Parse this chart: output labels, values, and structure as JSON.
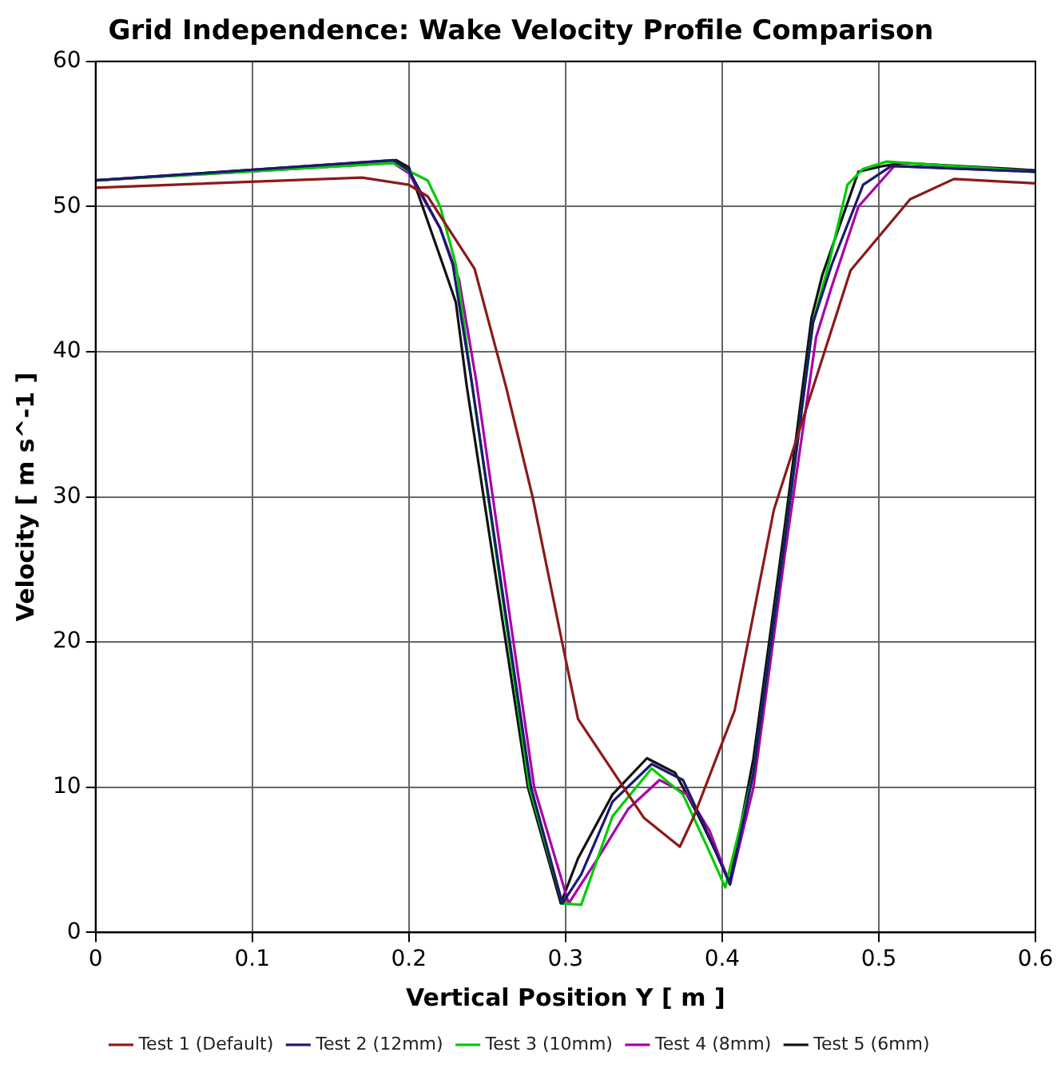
{
  "chart_data": {
    "type": "line",
    "title": "Grid Independence: Wake Velocity Profile Comparison",
    "xlabel": "Vertical Position Y [ m ]",
    "ylabel": "Velocity [ m s^-1 ]",
    "xlim": [
      0,
      0.6
    ],
    "xticks": [
      0,
      0.1,
      0.2,
      0.3,
      0.4,
      0.5,
      0.6
    ],
    "ylim": [
      0,
      60
    ],
    "yticks": [
      0,
      10,
      20,
      30,
      40,
      50,
      60
    ],
    "grid": true,
    "legend": "bottom",
    "marker": "none",
    "line_style": "solid",
    "series": [
      {
        "name": "Test 1 (Default)",
        "color": "#8b1a1a",
        "x": [
          0,
          0.17,
          0.2,
          0.212,
          0.242,
          0.262,
          0.279,
          0.298,
          0.308,
          0.35,
          0.373,
          0.382,
          0.408,
          0.433,
          0.482,
          0.52,
          0.548,
          0.6
        ],
        "values": [
          51.3,
          52.0,
          51.5,
          50.7,
          45.7,
          37.6,
          30,
          19.9,
          14.7,
          7.9,
          5.9,
          8,
          15.3,
          29.1,
          45.6,
          50.5,
          51.9,
          51.6
        ]
      },
      {
        "name": "Test 2 (12mm)",
        "color": "#1a1a6e",
        "x": [
          0,
          0.19,
          0.2,
          0.22,
          0.228,
          0.24,
          0.278,
          0.298,
          0.31,
          0.33,
          0.355,
          0.375,
          0.388,
          0.405,
          0.42,
          0.44,
          0.458,
          0.47,
          0.49,
          0.508,
          0.6
        ],
        "values": [
          51.8,
          53.2,
          52.5,
          48.5,
          46,
          38,
          10,
          2,
          4,
          9,
          11.6,
          10.5,
          7.5,
          3.3,
          11,
          27,
          42,
          46,
          51.5,
          52.8,
          52.4
        ]
      },
      {
        "name": "Test 3 (10mm)",
        "color": "#00cc00",
        "x": [
          0,
          0.19,
          0.212,
          0.22,
          0.23,
          0.24,
          0.277,
          0.298,
          0.31,
          0.33,
          0.355,
          0.375,
          0.39,
          0.402,
          0.42,
          0.44,
          0.458,
          0.468,
          0.48,
          0.49,
          0.505,
          0.6
        ],
        "values": [
          51.8,
          53.0,
          51.8,
          50,
          46,
          38,
          10,
          2,
          1.9,
          8,
          11.3,
          9.5,
          6,
          3.1,
          11,
          27,
          42,
          46,
          51.5,
          52.6,
          53.1,
          52.4
        ]
      },
      {
        "name": "Test 4 (8mm)",
        "color": "#aa00aa",
        "x": [
          0,
          0.19,
          0.2,
          0.22,
          0.232,
          0.243,
          0.28,
          0.302,
          0.32,
          0.34,
          0.36,
          0.378,
          0.392,
          0.405,
          0.42,
          0.44,
          0.46,
          0.47,
          0.487,
          0.51,
          0.6
        ],
        "values": [
          51.8,
          53.0,
          52.3,
          48.5,
          45,
          38,
          10,
          2,
          5,
          8.5,
          10.5,
          9.5,
          7,
          3.3,
          10,
          26,
          41,
          44.5,
          50,
          52.8,
          52.4
        ]
      },
      {
        "name": "Test 5 (6mm)",
        "color": "#111111",
        "x": [
          0,
          0.192,
          0.2,
          0.223,
          0.23,
          0.237,
          0.276,
          0.297,
          0.308,
          0.33,
          0.352,
          0.37,
          0.385,
          0.405,
          0.42,
          0.44,
          0.457,
          0.464,
          0.487,
          0.503,
          0.515,
          0.6
        ],
        "values": [
          51.8,
          53.2,
          52.7,
          45.6,
          43.4,
          37.6,
          10,
          2,
          5.1,
          9.5,
          12,
          11,
          8,
          3.5,
          12,
          28,
          42.3,
          45.3,
          52.4,
          52.8,
          53,
          52.5
        ]
      }
    ]
  }
}
